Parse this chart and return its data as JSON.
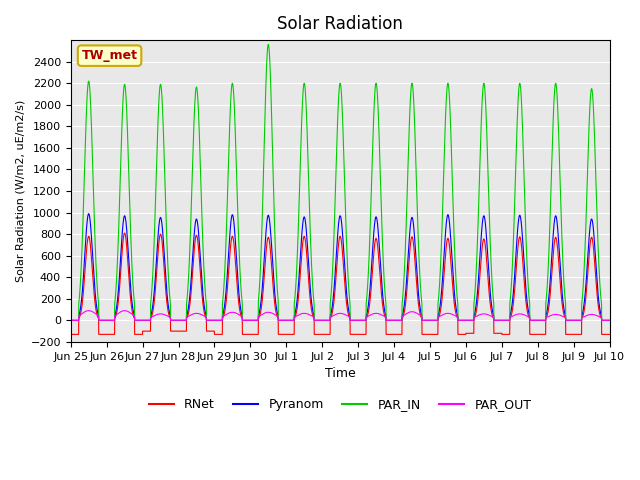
{
  "title": "Solar Radiation",
  "ylabel": "Solar Radiation (W/m2, uE/m2/s)",
  "xlabel": "Time",
  "ylim": [
    -200,
    2600
  ],
  "yticks": [
    -200,
    0,
    200,
    400,
    600,
    800,
    1000,
    1200,
    1400,
    1600,
    1800,
    2000,
    2200,
    2400
  ],
  "colors": {
    "RNet": "#ff0000",
    "Pyranom": "#0000ff",
    "PAR_IN": "#00cc00",
    "PAR_OUT": "#ff00ff"
  },
  "legend_label": "TW_met",
  "legend_box_color": "#ffffcc",
  "legend_box_edge": "#ccaa00",
  "background_color": "#e8e8e8",
  "n_days": 15,
  "x_tick_labels": [
    "Jun 25",
    "Jun 26",
    "Jun 27",
    "Jun 28",
    "Jun 29",
    "Jun 30",
    "Jul 1",
    "Jul 2",
    "Jul 3",
    "Jul 4",
    "Jul 5",
    "Jul 6",
    "Jul 7",
    "Jul 8",
    "Jul 9",
    "Jul 10"
  ],
  "RNet_peaks": [
    780,
    810,
    800,
    790,
    780,
    770,
    780,
    780,
    760,
    775,
    760,
    755,
    775,
    770,
    770
  ],
  "Pyranom_peaks": [
    990,
    970,
    955,
    940,
    980,
    975,
    960,
    970,
    960,
    955,
    980,
    970,
    975,
    970,
    940
  ],
  "PAR_IN_peaks": [
    2220,
    2190,
    2190,
    2165,
    2200,
    2560,
    2200,
    2200,
    2200,
    2200,
    2200,
    2200,
    2200,
    2200,
    2150
  ],
  "PAR_OUT_peaks": [
    90,
    90,
    60,
    65,
    75,
    75,
    65,
    65,
    65,
    80,
    65,
    60,
    60,
    55,
    55
  ],
  "RNet_neg": [
    -130,
    -130,
    -100,
    -100,
    -130,
    -130,
    -130,
    -130,
    -130,
    -130,
    -130,
    -120,
    -130,
    -130,
    -130
  ],
  "pts_per_day": 288
}
